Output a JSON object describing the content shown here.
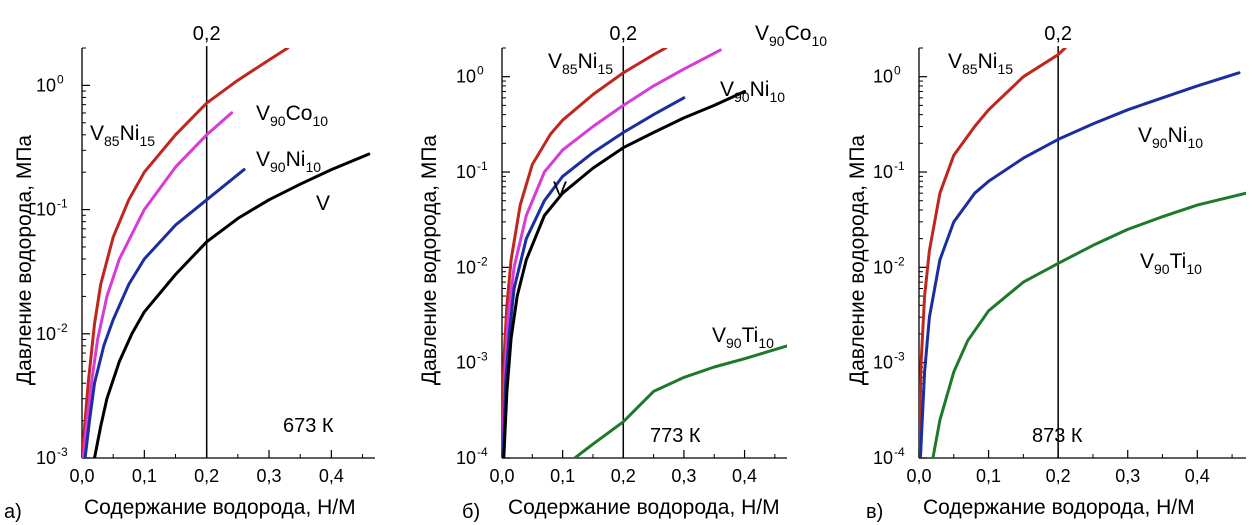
{
  "chart_data": [
    {
      "type": "line",
      "panel_label": "а)",
      "temperature_label": "673 К",
      "xlabel": "Содержание водорода, Н/М",
      "ylabel": "Давление водорода, МПа",
      "xlim": [
        0,
        0.47
      ],
      "ylim": [
        0.001,
        2
      ],
      "yscale": "log",
      "x_ticks": [
        "0,0",
        "0,1",
        "0,2",
        "0,3",
        "0,4"
      ],
      "x_tick_values": [
        0,
        0.1,
        0.2,
        0.3,
        0.4
      ],
      "y_ticks": [
        {
          "value": 0.001,
          "base": "10",
          "exp": "-3"
        },
        {
          "value": 0.01,
          "base": "10",
          "exp": "-2"
        },
        {
          "value": 0.1,
          "base": "10",
          "exp": "-1"
        },
        {
          "value": 1,
          "base": "10",
          "exp": "0"
        }
      ],
      "vline": {
        "x": 0.2,
        "label": "0,2"
      },
      "series": [
        {
          "name": "V85Ni15",
          "label": [
            {
              "t": "V"
            },
            {
              "t": "85",
              "sub": true
            },
            {
              "t": "Ni"
            },
            {
              "t": "15",
              "sub": true
            }
          ],
          "color": "#c0261d",
          "x": [
            0.0,
            0.005,
            0.01,
            0.02,
            0.03,
            0.05,
            0.075,
            0.1,
            0.15,
            0.2,
            0.25,
            0.3,
            0.33
          ],
          "y": [
            0.001,
            0.002,
            0.004,
            0.012,
            0.025,
            0.06,
            0.12,
            0.2,
            0.4,
            0.72,
            1.1,
            1.6,
            2.0
          ]
        },
        {
          "name": "V90Co10",
          "label": [
            {
              "t": "V"
            },
            {
              "t": "90",
              "sub": true
            },
            {
              "t": "Co"
            },
            {
              "t": "10",
              "sub": true
            }
          ],
          "color": "#d63cd6",
          "x": [
            0.002,
            0.008,
            0.015,
            0.025,
            0.04,
            0.06,
            0.1,
            0.15,
            0.2,
            0.24
          ],
          "y": [
            0.001,
            0.002,
            0.004,
            0.009,
            0.02,
            0.04,
            0.1,
            0.22,
            0.4,
            0.6
          ]
        },
        {
          "name": "V90Ni10",
          "label": [
            {
              "t": "V"
            },
            {
              "t": "90",
              "sub": true
            },
            {
              "t": "Ni"
            },
            {
              "t": "10",
              "sub": true
            }
          ],
          "color": "#1b2ea0",
          "x": [
            0.005,
            0.012,
            0.02,
            0.035,
            0.05,
            0.075,
            0.1,
            0.15,
            0.2,
            0.26
          ],
          "y": [
            0.001,
            0.002,
            0.004,
            0.008,
            0.013,
            0.025,
            0.04,
            0.075,
            0.12,
            0.21
          ]
        },
        {
          "name": "V",
          "label": [
            {
              "t": "V"
            }
          ],
          "color": "#000000",
          "x": [
            0.02,
            0.03,
            0.04,
            0.06,
            0.08,
            0.1,
            0.15,
            0.2,
            0.25,
            0.3,
            0.35,
            0.4,
            0.46
          ],
          "y": [
            0.001,
            0.0018,
            0.003,
            0.006,
            0.01,
            0.015,
            0.03,
            0.055,
            0.085,
            0.12,
            0.16,
            0.21,
            0.28
          ]
        }
      ]
    },
    {
      "type": "line",
      "panel_label": "б)",
      "temperature_label": "773 К",
      "xlabel": "Содержание водорода, Н/М",
      "ylabel": "Давление водорода, МПа",
      "xlim": [
        0,
        0.47
      ],
      "ylim": [
        0.0001,
        2
      ],
      "yscale": "log",
      "x_ticks": [
        "0,0",
        "0,1",
        "0,2",
        "0,3",
        "0,4"
      ],
      "x_tick_values": [
        0,
        0.1,
        0.2,
        0.3,
        0.4
      ],
      "y_ticks": [
        {
          "value": 0.0001,
          "base": "10",
          "exp": "-4"
        },
        {
          "value": 0.001,
          "base": "10",
          "exp": "-3"
        },
        {
          "value": 0.01,
          "base": "10",
          "exp": "-2"
        },
        {
          "value": 0.1,
          "base": "10",
          "exp": "-1"
        },
        {
          "value": 1,
          "base": "10",
          "exp": "0"
        }
      ],
      "vline": {
        "x": 0.2,
        "label": "0,2"
      },
      "series": [
        {
          "name": "V85Ni15",
          "label": [
            {
              "t": "V"
            },
            {
              "t": "85",
              "sub": true
            },
            {
              "t": "Ni"
            },
            {
              "t": "15",
              "sub": true
            }
          ],
          "color": "#c0261d",
          "x": [
            0.0,
            0.003,
            0.008,
            0.015,
            0.03,
            0.05,
            0.08,
            0.1,
            0.15,
            0.2,
            0.25,
            0.27
          ],
          "y": [
            0.0001,
            0.001,
            0.004,
            0.012,
            0.045,
            0.12,
            0.25,
            0.35,
            0.65,
            1.1,
            1.7,
            2.0
          ]
        },
        {
          "name": "V90Co10",
          "label": [
            {
              "t": "V"
            },
            {
              "t": "90",
              "sub": true
            },
            {
              "t": "Co"
            },
            {
              "t": "10",
              "sub": true
            }
          ],
          "color": "#d63cd6",
          "x": [
            0.001,
            0.005,
            0.01,
            0.02,
            0.04,
            0.07,
            0.1,
            0.15,
            0.2,
            0.25,
            0.3,
            0.36
          ],
          "y": [
            0.0001,
            0.0008,
            0.003,
            0.01,
            0.035,
            0.1,
            0.17,
            0.3,
            0.5,
            0.8,
            1.2,
            1.9
          ]
        },
        {
          "name": "V90Ni10",
          "label": [
            {
              "t": "V"
            },
            {
              "t": "90",
              "sub": true
            },
            {
              "t": "Ni"
            },
            {
              "t": "10",
              "sub": true
            }
          ],
          "color": "#1b2ea0",
          "x": [
            0.002,
            0.006,
            0.012,
            0.02,
            0.04,
            0.07,
            0.1,
            0.15,
            0.2,
            0.25,
            0.3
          ],
          "y": [
            0.0001,
            0.0006,
            0.002,
            0.006,
            0.02,
            0.05,
            0.09,
            0.16,
            0.26,
            0.4,
            0.6
          ]
        },
        {
          "name": "V",
          "label": [
            {
              "t": "V"
            }
          ],
          "color": "#000000",
          "x": [
            0.003,
            0.008,
            0.015,
            0.025,
            0.04,
            0.07,
            0.1,
            0.15,
            0.2,
            0.25,
            0.3,
            0.35,
            0.4
          ],
          "y": [
            0.0001,
            0.0005,
            0.0018,
            0.005,
            0.012,
            0.035,
            0.06,
            0.11,
            0.18,
            0.26,
            0.37,
            0.5,
            0.7
          ]
        },
        {
          "name": "V90Ti10",
          "label": [
            {
              "t": "V"
            },
            {
              "t": "90",
              "sub": true
            },
            {
              "t": "Ti"
            },
            {
              "t": "10",
              "sub": true
            }
          ],
          "color": "#1e7a2a",
          "x": [
            0.12,
            0.15,
            0.2,
            0.25,
            0.3,
            0.35,
            0.4,
            0.47
          ],
          "y": [
            0.0001,
            0.00014,
            0.00024,
            0.0005,
            0.0007,
            0.0009,
            0.0011,
            0.0015
          ]
        }
      ]
    },
    {
      "type": "line",
      "panel_label": "в)",
      "temperature_label": "873 К",
      "xlabel": "Содержание водорода, Н/М",
      "ylabel": "Давление водорода, МПа",
      "xlim": [
        0,
        0.47
      ],
      "ylim": [
        0.0001,
        2
      ],
      "yscale": "log",
      "x_ticks": [
        "0,0",
        "0,1",
        "0,2",
        "0,3",
        "0,4"
      ],
      "x_tick_values": [
        0,
        0.1,
        0.2,
        0.3,
        0.4
      ],
      "y_ticks": [
        {
          "value": 0.0001,
          "base": "10",
          "exp": "-4"
        },
        {
          "value": 0.001,
          "base": "10",
          "exp": "-3"
        },
        {
          "value": 0.01,
          "base": "10",
          "exp": "-2"
        },
        {
          "value": 0.1,
          "base": "10",
          "exp": "-1"
        },
        {
          "value": 1,
          "base": "10",
          "exp": "0"
        }
      ],
      "vline": {
        "x": 0.2,
        "label": "0,2"
      },
      "series": [
        {
          "name": "V85Ni15",
          "label": [
            {
              "t": "V"
            },
            {
              "t": "85",
              "sub": true
            },
            {
              "t": "Ni"
            },
            {
              "t": "15",
              "sub": true
            }
          ],
          "color": "#c0261d",
          "x": [
            0.0,
            0.003,
            0.008,
            0.015,
            0.03,
            0.05,
            0.08,
            0.1,
            0.15,
            0.2,
            0.21
          ],
          "y": [
            0.0001,
            0.001,
            0.005,
            0.015,
            0.06,
            0.15,
            0.3,
            0.45,
            1.0,
            1.7,
            2.0
          ]
        },
        {
          "name": "V90Ni10",
          "label": [
            {
              "t": "V"
            },
            {
              "t": "90",
              "sub": true
            },
            {
              "t": "Ni"
            },
            {
              "t": "10",
              "sub": true
            }
          ],
          "color": "#1b2ea0",
          "x": [
            0.002,
            0.008,
            0.015,
            0.03,
            0.05,
            0.08,
            0.1,
            0.15,
            0.2,
            0.25,
            0.3,
            0.35,
            0.4,
            0.46
          ],
          "y": [
            0.0001,
            0.0008,
            0.003,
            0.012,
            0.03,
            0.06,
            0.08,
            0.14,
            0.22,
            0.32,
            0.45,
            0.6,
            0.8,
            1.1
          ]
        },
        {
          "name": "V90Ti10",
          "label": [
            {
              "t": "V"
            },
            {
              "t": "90",
              "sub": true
            },
            {
              "t": "Ti"
            },
            {
              "t": "10",
              "sub": true
            }
          ],
          "color": "#1e7a2a",
          "x": [
            0.02,
            0.03,
            0.05,
            0.07,
            0.1,
            0.15,
            0.2,
            0.25,
            0.3,
            0.35,
            0.4,
            0.47
          ],
          "y": [
            0.0001,
            0.00025,
            0.0008,
            0.0017,
            0.0035,
            0.007,
            0.011,
            0.017,
            0.025,
            0.034,
            0.045,
            0.06
          ]
        }
      ]
    }
  ]
}
